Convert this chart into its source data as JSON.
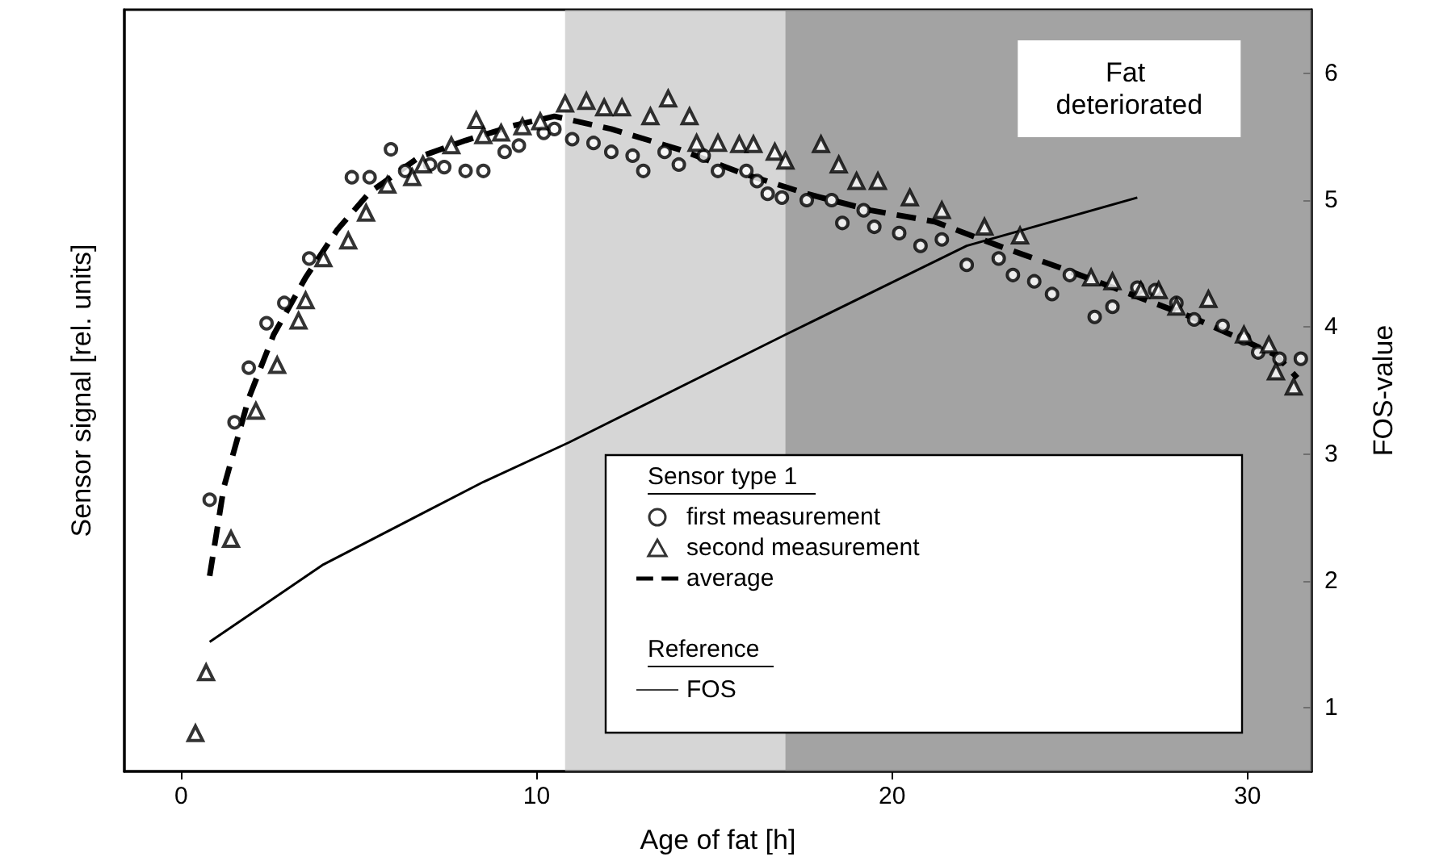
{
  "chart_data": {
    "type": "scatter",
    "xlabel": "Age of fat [h]",
    "ylabel": "Sensor signal [rel. units]",
    "y2label": "FOS-value",
    "xlim": [
      -1.6,
      31.8
    ],
    "xticks": [
      0,
      10,
      20,
      30
    ],
    "y2lim": [
      0.5,
      6.5
    ],
    "y2ticks": [
      1,
      2,
      3,
      4,
      5,
      6
    ],
    "legend": "bottom right",
    "legend_title": "Sensor type 1",
    "annotations": [
      "Reference"
    ],
    "grid": false,
    "bands": [
      {
        "axis": "x",
        "from": 10.8,
        "to": 31.8,
        "color": "#b4b4b4"
      },
      {
        "axis": "x",
        "from": 17,
        "to": 31.8,
        "label": "Fat deteriorated",
        "color": "#7a7a7a"
      }
    ],
    "series": [
      {
        "name": "first measurement",
        "type": "scatter",
        "marker": "circle",
        "axis": "y2",
        "color": "#000000",
        "x": [
          0.8,
          1.5,
          1.9,
          2.4,
          2.9,
          3.6,
          4.8,
          5.3,
          5.9,
          6.3,
          7.0,
          7.4,
          8.0,
          8.5,
          9.1,
          9.5,
          10.2,
          10.5,
          11.0,
          11.6,
          12.1,
          12.7,
          13.0,
          13.6,
          14.0,
          14.7,
          15.1,
          15.9,
          16.2,
          16.5,
          16.9,
          17.6,
          18.3,
          18.6,
          19.2,
          19.5,
          20.2,
          20.8,
          21.4,
          22.1,
          23.0,
          23.4,
          24.0,
          24.5,
          25.0,
          25.7,
          26.2,
          26.9,
          27.4,
          28.0,
          28.5,
          29.3,
          29.9,
          30.3,
          30.9,
          31.5
        ],
        "values": [
          2.64,
          3.25,
          3.68,
          4.03,
          4.19,
          4.54,
          5.18,
          5.18,
          5.4,
          5.23,
          5.28,
          5.26,
          5.23,
          5.23,
          5.38,
          5.43,
          5.53,
          5.56,
          5.48,
          5.45,
          5.38,
          5.35,
          5.23,
          5.38,
          5.28,
          5.35,
          5.23,
          5.23,
          5.15,
          5.05,
          5.02,
          5.0,
          5.0,
          4.82,
          4.92,
          4.79,
          4.74,
          4.64,
          4.69,
          4.49,
          4.54,
          4.41,
          4.36,
          4.26,
          4.41,
          4.08,
          4.16,
          4.31,
          4.29,
          4.19,
          4.06,
          4.01,
          3.91,
          3.8,
          3.75,
          3.75
        ]
      },
      {
        "name": "second measurement",
        "type": "scatter",
        "marker": "triangle",
        "axis": "y2",
        "color": "#000000",
        "x": [
          0.4,
          0.7,
          1.4,
          2.1,
          2.7,
          3.3,
          3.5,
          4.0,
          4.7,
          5.2,
          5.8,
          6.5,
          6.8,
          7.6,
          8.3,
          8.5,
          9.0,
          9.6,
          10.1,
          10.8,
          11.4,
          11.9,
          12.4,
          13.2,
          13.7,
          14.3,
          14.5,
          15.1,
          15.7,
          16.1,
          16.7,
          17.0,
          18.0,
          18.5,
          19.0,
          19.6,
          20.5,
          21.4,
          22.6,
          23.6,
          25.6,
          26.2,
          27.0,
          27.5,
          28.0,
          28.9,
          29.9,
          30.6,
          30.8,
          31.3
        ],
        "values": [
          0.8,
          1.28,
          2.33,
          3.34,
          3.7,
          4.05,
          4.21,
          4.54,
          4.68,
          4.9,
          5.12,
          5.18,
          5.28,
          5.43,
          5.63,
          5.51,
          5.53,
          5.58,
          5.62,
          5.76,
          5.78,
          5.73,
          5.73,
          5.66,
          5.8,
          5.66,
          5.45,
          5.45,
          5.44,
          5.44,
          5.38,
          5.31,
          5.44,
          5.28,
          5.15,
          5.15,
          5.02,
          4.92,
          4.79,
          4.72,
          4.39,
          4.36,
          4.29,
          4.29,
          4.16,
          4.22,
          3.94,
          3.86,
          3.65,
          3.53
        ]
      },
      {
        "name": "average",
        "type": "line",
        "marker": "none",
        "line_style": "dashed",
        "axis": "y2",
        "color": "#000000",
        "x": [
          0.8,
          1.2,
          1.9,
          2.6,
          3.5,
          4.4,
          5.3,
          6.7,
          8.0,
          9.4,
          10.5,
          12.1,
          14.0,
          15.8,
          17.6,
          19.4,
          21.2,
          23.0,
          24.9,
          26.7,
          28.5,
          30.8,
          31.4
        ],
        "values": [
          2.04,
          2.74,
          3.44,
          3.94,
          4.39,
          4.77,
          5.06,
          5.34,
          5.47,
          5.59,
          5.66,
          5.56,
          5.4,
          5.21,
          5.05,
          4.92,
          4.83,
          4.64,
          4.45,
          4.26,
          4.07,
          3.78,
          3.6
        ]
      },
      {
        "name": "FOS",
        "type": "line",
        "marker": "none",
        "line_style": "solid",
        "axis": "y2",
        "color": "#000000",
        "x": [
          0.8,
          4.0,
          8.5,
          10.9,
          17.0,
          22.1,
          26.9
        ],
        "values": [
          1.52,
          2.13,
          2.78,
          3.09,
          3.94,
          4.64,
          5.02
        ]
      }
    ]
  }
}
